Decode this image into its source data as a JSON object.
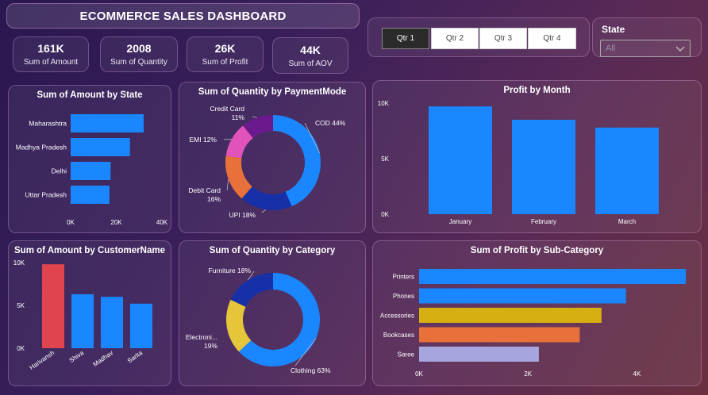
{
  "header": {
    "title": "ECOMMERCE SALES DASHBOARD"
  },
  "kpis": [
    {
      "value": "161K",
      "label": "Sum of Amount"
    },
    {
      "value": "2008",
      "label": "Sum of Quantity"
    },
    {
      "value": "26K",
      "label": "Sum of Profit"
    },
    {
      "value": "44K",
      "label": "Sum of AOV"
    }
  ],
  "quarter_slicer": {
    "options": [
      "Qtr 1",
      "Qtr 2",
      "Qtr 3",
      "Qtr 4"
    ],
    "selected": "Qtr 1"
  },
  "state_filter": {
    "label": "State",
    "value": "All"
  },
  "colors": {
    "bar": "#1a86ff",
    "highlight": "#e0454f"
  },
  "chart_data": [
    {
      "id": "amount_by_state",
      "type": "bar",
      "orientation": "horizontal",
      "title": "Sum of Amount by State",
      "categories": [
        "Maharashtra",
        "Madhya Pradesh",
        "Delhi",
        "Uttar Pradesh"
      ],
      "values": [
        32000,
        26000,
        17500,
        17000
      ],
      "xlim": [
        0,
        40000
      ],
      "ticks": [
        0,
        20000,
        40000
      ],
      "tick_labels": [
        "0K",
        "20K",
        "40K"
      ]
    },
    {
      "id": "qty_by_payment",
      "type": "pie",
      "donut": true,
      "title": "Sum of Quantity by PaymentMode",
      "slices": [
        {
          "label": "COD",
          "pct": 44,
          "display": "COD 44%",
          "color": "#1a86ff"
        },
        {
          "label": "UPI",
          "pct": 18,
          "display": "UPI 18%",
          "color": "#1730a8"
        },
        {
          "label": "Debit Card",
          "pct": 16,
          "display": "Debit Card 16%",
          "color": "#e8703a"
        },
        {
          "label": "EMI",
          "pct": 12,
          "display": "EMI 12%",
          "color": "#e053b8"
        },
        {
          "label": "Credit Card",
          "pct": 11,
          "display": "Credit Card 11%",
          "color": "#6a1a8c"
        }
      ]
    },
    {
      "id": "profit_by_month",
      "type": "bar",
      "title": "Profit by Month",
      "categories": [
        "January",
        "February",
        "March"
      ],
      "values": [
        9700,
        8500,
        7800
      ],
      "ylim": [
        0,
        10000
      ],
      "ticks": [
        0,
        5000,
        10000
      ],
      "tick_labels": [
        "0K",
        "5K",
        "10K"
      ]
    },
    {
      "id": "amount_by_customer",
      "type": "bar",
      "title": "Sum of Amount by CustomerName",
      "categories": [
        "Harivansh",
        "Shiva",
        "Madhav",
        "Sarita"
      ],
      "values": [
        9800,
        6300,
        6000,
        5200
      ],
      "highlight_index": 0,
      "ylim": [
        0,
        10000
      ],
      "ticks": [
        0,
        5000,
        10000
      ],
      "tick_labels": [
        "0K",
        "5K",
        "10K"
      ]
    },
    {
      "id": "qty_by_category",
      "type": "pie",
      "donut": true,
      "title": "Sum of Quantity by Category",
      "slices": [
        {
          "label": "Clothing",
          "pct": 63,
          "display": "Clothing 63%",
          "color": "#1a86ff"
        },
        {
          "label": "Electronics",
          "pct": 19,
          "display": "Electroni... 19%",
          "color": "#e5c53a"
        },
        {
          "label": "Furniture",
          "pct": 18,
          "display": "Furniture 18%",
          "color": "#1730a8"
        }
      ]
    },
    {
      "id": "profit_by_subcategory",
      "type": "bar",
      "orientation": "horizontal",
      "title": "Sum of Profit by Sub-Category",
      "categories": [
        "Printers",
        "Phones",
        "Accessories",
        "Bookcases",
        "Saree"
      ],
      "values": [
        4900,
        3800,
        3350,
        2950,
        2200
      ],
      "colors": [
        "#1a86ff",
        "#1a86ff",
        "#d6b010",
        "#e8703a",
        "#a7a5dd"
      ],
      "xlim": [
        0,
        5000
      ],
      "ticks": [
        0,
        2000,
        4000
      ],
      "tick_labels": [
        "0K",
        "2K",
        "4K"
      ]
    }
  ]
}
